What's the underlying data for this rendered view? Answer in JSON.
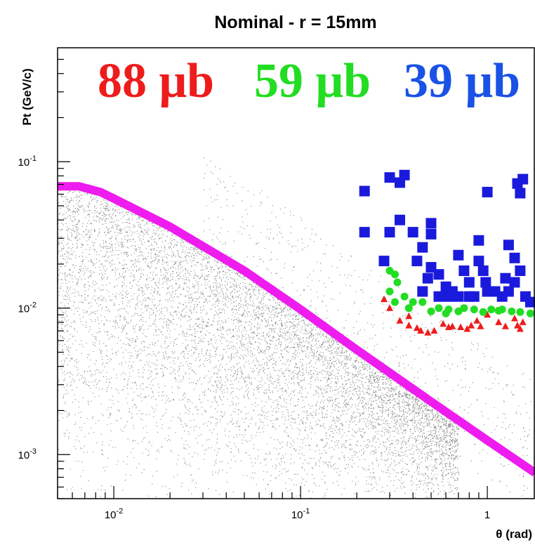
{
  "chart_data": {
    "type": "scatter",
    "title": "Nominal - r = 15mm",
    "xlabel": "θ (rad)",
    "ylabel": "Pt (GeV/c)",
    "xscale": "log",
    "yscale": "log",
    "xlim": [
      0.005,
      1.8
    ],
    "ylim": [
      0.0005,
      0.6
    ],
    "x_ticks": [
      {
        "value": 0.01,
        "base": "10",
        "exp": "-2"
      },
      {
        "value": 0.1,
        "base": "10",
        "exp": "-1"
      },
      {
        "value": 1,
        "base": "1",
        "exp": ""
      }
    ],
    "y_ticks": [
      {
        "value": 0.001,
        "base": "10",
        "exp": "-3"
      },
      {
        "value": 0.01,
        "base": "10",
        "exp": "-2"
      },
      {
        "value": 0.1,
        "base": "10",
        "exp": "-1"
      }
    ],
    "annotations": [
      {
        "text": "88 μb",
        "color": "#ee1c1c"
      },
      {
        "text": "59 μb",
        "color": "#22dd22"
      },
      {
        "text": "39 μb",
        "color": "#1a52e6"
      }
    ],
    "curve": {
      "color": "#ee1cee",
      "points": [
        [
          0.005,
          0.068
        ],
        [
          0.0065,
          0.068
        ],
        [
          0.0085,
          0.062
        ],
        [
          0.01,
          0.056
        ],
        [
          0.02,
          0.036
        ],
        [
          0.05,
          0.018
        ],
        [
          0.1,
          0.0098
        ],
        [
          0.2,
          0.0052
        ],
        [
          0.5,
          0.0023
        ],
        [
          1,
          0.00125
        ],
        [
          1.8,
          0.00075
        ]
      ]
    },
    "background_scatter": {
      "color": "#555555",
      "approx_points": 14000
    },
    "series": [
      {
        "marker": "square",
        "color": "#1a1adc",
        "points": [
          [
            0.22,
            0.063
          ],
          [
            0.22,
            0.033
          ],
          [
            0.3,
            0.078
          ],
          [
            0.3,
            0.033
          ],
          [
            0.36,
            0.081
          ],
          [
            0.34,
            0.072
          ],
          [
            0.34,
            0.04
          ],
          [
            0.4,
            0.033
          ],
          [
            0.28,
            0.021
          ],
          [
            0.42,
            0.021
          ],
          [
            0.5,
            0.038
          ],
          [
            0.5,
            0.032
          ],
          [
            0.45,
            0.026
          ],
          [
            0.5,
            0.019
          ],
          [
            0.55,
            0.017
          ],
          [
            0.48,
            0.016
          ],
          [
            0.6,
            0.014
          ],
          [
            0.45,
            0.013
          ],
          [
            0.55,
            0.012
          ],
          [
            0.62,
            0.012
          ],
          [
            0.7,
            0.023
          ],
          [
            0.75,
            0.018
          ],
          [
            0.8,
            0.015
          ],
          [
            0.8,
            0.012
          ],
          [
            0.9,
            0.029
          ],
          [
            0.9,
            0.021
          ],
          [
            0.95,
            0.018
          ],
          [
            0.98,
            0.015
          ],
          [
            1.0,
            0.013
          ],
          [
            0.85,
            0.012
          ],
          [
            1.0,
            0.062
          ],
          [
            1.1,
            0.013
          ],
          [
            1.2,
            0.012
          ],
          [
            1.3,
            0.027
          ],
          [
            1.4,
            0.022
          ],
          [
            1.5,
            0.018
          ],
          [
            1.4,
            0.015
          ],
          [
            1.45,
            0.071
          ],
          [
            1.5,
            0.061
          ],
          [
            1.55,
            0.076
          ],
          [
            1.6,
            0.012
          ],
          [
            1.7,
            0.011
          ],
          [
            1.3,
            0.013
          ],
          [
            1.25,
            0.016
          ],
          [
            0.65,
            0.013
          ],
          [
            0.7,
            0.012
          ]
        ]
      },
      {
        "marker": "circle",
        "color": "#22dd22",
        "points": [
          [
            0.3,
            0.018
          ],
          [
            0.32,
            0.017
          ],
          [
            0.33,
            0.015
          ],
          [
            0.3,
            0.013
          ],
          [
            0.36,
            0.012
          ],
          [
            0.32,
            0.011
          ],
          [
            0.4,
            0.011
          ],
          [
            0.38,
            0.01
          ],
          [
            0.45,
            0.011
          ],
          [
            0.5,
            0.0095
          ],
          [
            0.55,
            0.01
          ],
          [
            0.6,
            0.0092
          ],
          [
            0.62,
            0.0098
          ],
          [
            0.7,
            0.0095
          ],
          [
            0.75,
            0.01
          ],
          [
            0.85,
            0.0098
          ],
          [
            0.95,
            0.0094
          ],
          [
            1.05,
            0.0098
          ],
          [
            1.15,
            0.0096
          ],
          [
            1.2,
            0.0098
          ],
          [
            1.35,
            0.0095
          ],
          [
            1.5,
            0.0094
          ],
          [
            1.7,
            0.0092
          ]
        ]
      },
      {
        "marker": "triangle",
        "color": "#ee1c1c",
        "points": [
          [
            0.28,
            0.0115
          ],
          [
            0.3,
            0.01
          ],
          [
            0.34,
            0.0082
          ],
          [
            0.38,
            0.0076
          ],
          [
            0.42,
            0.0073
          ],
          [
            0.44,
            0.007
          ],
          [
            0.52,
            0.007
          ],
          [
            0.58,
            0.0078
          ],
          [
            0.62,
            0.0074
          ],
          [
            0.65,
            0.0075
          ],
          [
            0.72,
            0.0074
          ],
          [
            0.78,
            0.0072
          ],
          [
            0.82,
            0.0076
          ],
          [
            0.88,
            0.0082
          ],
          [
            0.92,
            0.0075
          ],
          [
            1.0,
            0.009
          ],
          [
            1.15,
            0.008
          ],
          [
            1.25,
            0.0075
          ],
          [
            1.4,
            0.0085
          ],
          [
            1.45,
            0.0076
          ],
          [
            1.5,
            0.0072
          ],
          [
            1.55,
            0.008
          ],
          [
            0.38,
            0.0088
          ],
          [
            0.48,
            0.0068
          ]
        ]
      }
    ]
  }
}
